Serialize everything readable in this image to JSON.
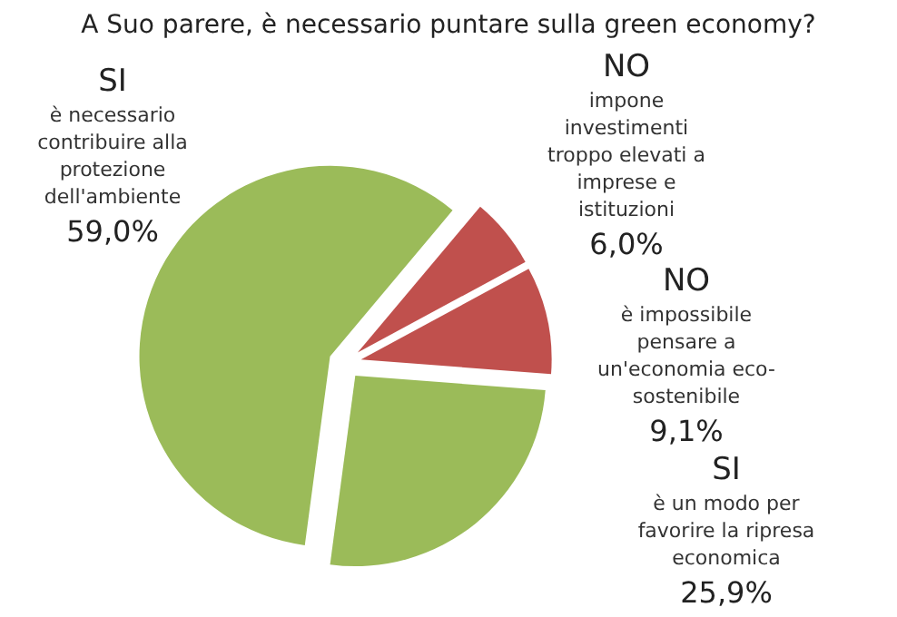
{
  "chart_data": {
    "type": "pie",
    "title": "A Suo parere, è necessario puntare sulla green economy?",
    "categories": [
      "NO\nimpone\ninvestimenti\ntroppo elevati a\nimprese e\nistituzioni",
      "NO\nè impossibile\npensare a\nun'economia eco-\nsostenibile",
      "SI\nè un modo per\nfavorire la ripresa\neconomica",
      "SI\nè necessario\ncontribuire alla\nprotezione\ndell'ambiente"
    ],
    "values": [
      6.0,
      9.1,
      25.9,
      59.0
    ],
    "value_labels": [
      "6,0%",
      "9,1%",
      "25,9%",
      "59,0%"
    ],
    "colors": [
      "#c0504d",
      "#c0504d",
      "#9bbb59",
      "#9bbb59"
    ]
  }
}
